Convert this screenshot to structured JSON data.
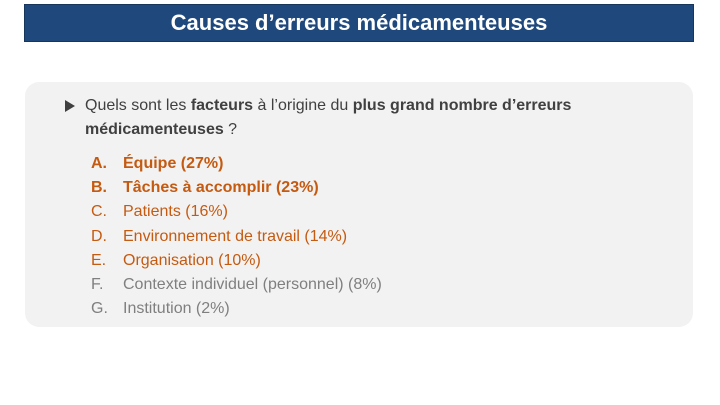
{
  "slide": {
    "title": "Causes d’erreurs médicamenteuses"
  },
  "question": {
    "bullet_icon": "triangle-right-icon",
    "parts": [
      {
        "text": "Quels sont les ",
        "bold": false
      },
      {
        "text": "facteurs",
        "bold": true
      },
      {
        "text": " à l’origine du ",
        "bold": false
      },
      {
        "text": "plus grand nombre d’erreurs",
        "bold": true
      }
    ],
    "line2_bold": "médicamenteuses",
    "line2_rest": " ?"
  },
  "answers": [
    {
      "letter": "A.",
      "label": "Équipe (27%)",
      "color": "#c55a11",
      "bold": true
    },
    {
      "letter": "B.",
      "label": "Tâches à accomplir (23%)",
      "color": "#c55a11",
      "bold": true
    },
    {
      "letter": "C.",
      "label": "Patients (16%)",
      "color": "#c55a11",
      "bold": false
    },
    {
      "letter": "D.",
      "label": "Environnement de travail (14%)",
      "color": "#c55a11",
      "bold": false
    },
    {
      "letter": "E.",
      "label": "Organisation (10%)",
      "color": "#c55a11",
      "bold": false
    },
    {
      "letter": "F.",
      "label": "Contexte individuel (personnel) (8%)",
      "color": "#7f7f7f",
      "bold": false
    },
    {
      "letter": "G.",
      "label": "Institution (2%)",
      "color": "#7f7f7f",
      "bold": false
    }
  ],
  "colors": {
    "title_bar": "#1f497d",
    "content_box": "#f2f2f2",
    "question_text": "#404040",
    "answer_highlight": "#c55a11",
    "answer_muted": "#7f7f7f"
  }
}
